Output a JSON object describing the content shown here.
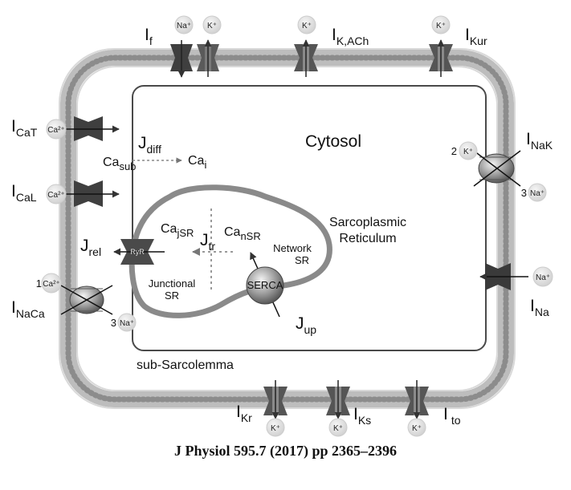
{
  "diagram": {
    "compartments": {
      "cytosol": "Cytosol",
      "sr_line1": "Sarcoplasmic",
      "sr_line2": "Reticulum",
      "network_sr_line1": "Network",
      "network_sr_line2": "SR",
      "junctional_sr_line1": "Junctional",
      "junctional_sr_line2": "SR",
      "sub_sarcolemma": "sub-Sarcolemma"
    },
    "currents": {
      "I_f": {
        "main": "I",
        "sub": "f"
      },
      "I_KACh": {
        "main": "I",
        "sub": "K,ACh"
      },
      "I_Kur": {
        "main": "I",
        "sub": "Kur"
      },
      "I_CaT": {
        "main": "I",
        "sub": "CaT"
      },
      "I_CaL": {
        "main": "I",
        "sub": "CaL"
      },
      "I_NaCa": {
        "main": "I",
        "sub": "NaCa"
      },
      "I_NaK": {
        "main": "I",
        "sub": "NaK"
      },
      "I_Na": {
        "main": "I",
        "sub": "Na"
      },
      "I_Kr": {
        "main": "I",
        "sub": "Kr"
      },
      "I_Ks": {
        "main": "I",
        "sub": "Ks"
      },
      "I_to": {
        "main": "I",
        "sub": "to"
      }
    },
    "fluxes": {
      "J_diff": {
        "main": "J",
        "sub": "diff"
      },
      "J_rel": {
        "main": "J",
        "sub": "rel"
      },
      "J_tr": {
        "main": "J",
        "sub": "tr"
      },
      "J_up": {
        "main": "J",
        "sub": "up"
      }
    },
    "concentrations": {
      "Ca_sub": {
        "main": "Ca",
        "sub": "sub"
      },
      "Ca_i": {
        "main": "Ca",
        "sub": "i"
      },
      "Ca_jSR": {
        "main": "Ca",
        "sub": "jSR"
      },
      "Ca_nSR": {
        "main": "Ca",
        "sub": "nSR"
      }
    },
    "ions": {
      "na": "Na⁺",
      "k": "K⁺",
      "ca": "Ca²⁺"
    },
    "stoichiometry": {
      "nak_k": "2",
      "nak_na": "3",
      "naca_ca": "1",
      "naca_na": "3"
    },
    "proteins": {
      "ryr": "RyR",
      "serca": "SERCA"
    }
  },
  "citation": "J Physiol 595.7 (2017) pp 2365–2396",
  "colors": {
    "membrane": "#b9b9b9",
    "channel": "#555555",
    "channel_dark": "#3a3a3a",
    "sr": "#8a8a8a",
    "ion_bubble": "#e4e4e4"
  }
}
